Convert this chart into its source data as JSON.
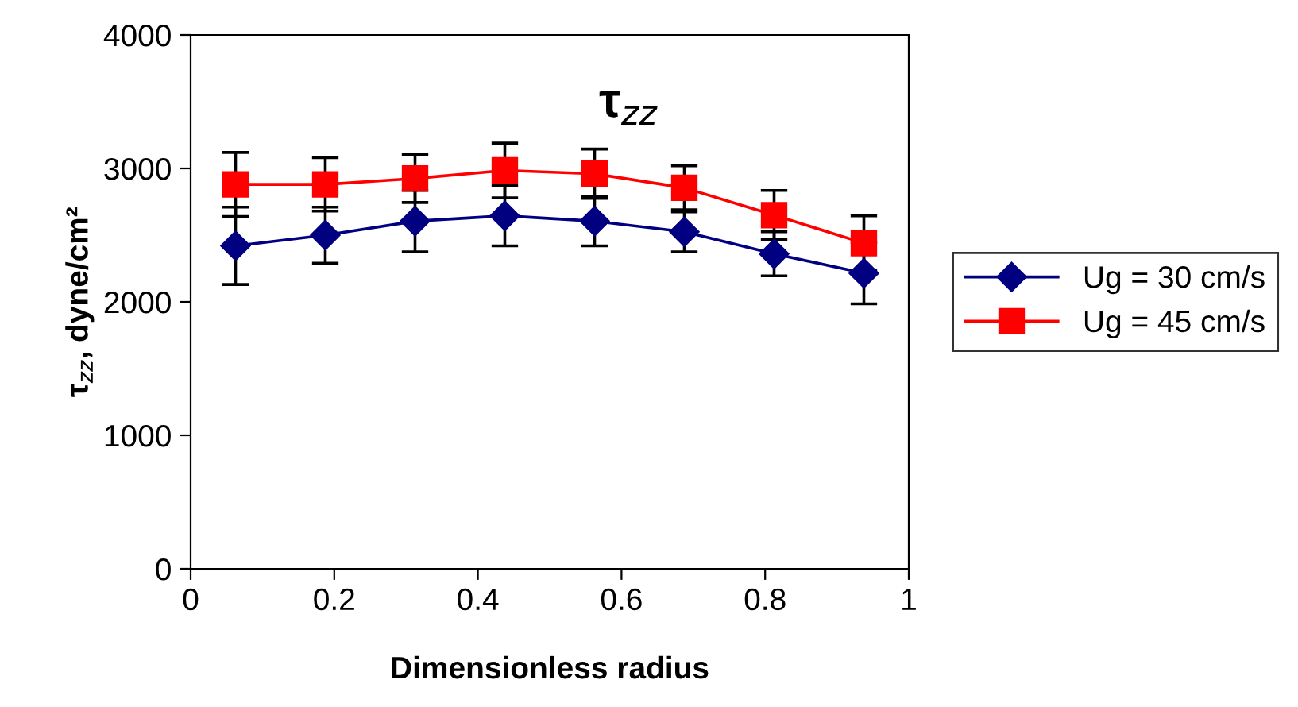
{
  "chart_data": {
    "type": "line",
    "title": "τ$_{zz}$",
    "xlabel": "Dimensionless radius",
    "ylabel": "τ$_{zz}$, dyne/cm²",
    "x": [
      0.0625,
      0.1875,
      0.3125,
      0.4375,
      0.5625,
      0.6875,
      0.8125,
      0.9375
    ],
    "series": [
      {
        "name": "Ug = 30 cm/s",
        "color": "#000080",
        "marker": "diamond",
        "values": [
          2420,
          2500,
          2605,
          2645,
          2605,
          2525,
          2360,
          2215
        ],
        "errors": [
          290,
          210,
          230,
          225,
          185,
          150,
          165,
          230
        ]
      },
      {
        "name": "Ug = 45 cm/s",
        "color": "#ff0000",
        "marker": "square",
        "values": [
          2880,
          2880,
          2925,
          2985,
          2960,
          2855,
          2650,
          2440
        ],
        "errors": [
          240,
          200,
          180,
          205,
          185,
          165,
          185,
          205
        ]
      }
    ],
    "xlim": [
      0,
      1
    ],
    "xticks": [
      0,
      0.2,
      0.4,
      0.6,
      0.8,
      1
    ],
    "ylim": [
      0,
      4000
    ],
    "yticks": [
      0,
      1000,
      2000,
      3000,
      4000
    ],
    "grid": false,
    "legend": "right",
    "line_style": "solid"
  }
}
